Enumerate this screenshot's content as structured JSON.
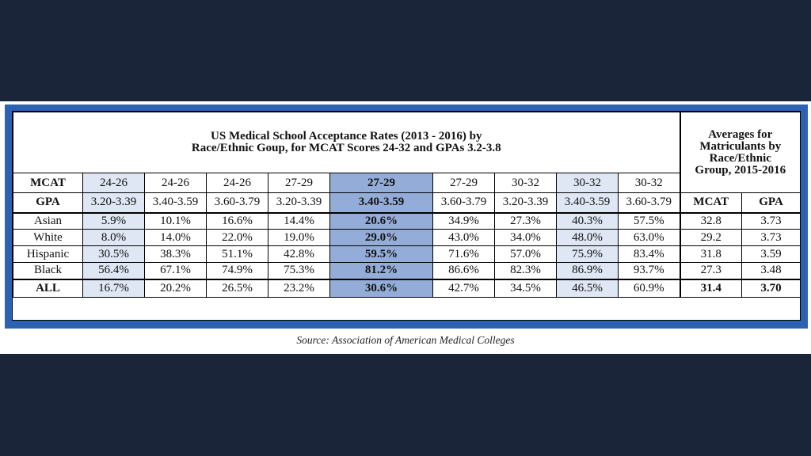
{
  "title": {
    "line1": "US Medical School Acceptance Rates (2013 - 2016) by",
    "line2": "Race/Ethnic Goup, for MCAT Scores 24-32 and GPAs 3.2-3.8"
  },
  "averages_header": {
    "line1": "Averages for",
    "line2": "Matriculants by",
    "line3": "Race/Ethnic",
    "line4": "Group, 2015-2016"
  },
  "header_rows": {
    "mcat_label": "MCAT",
    "gpa_label": "GPA",
    "mcat": [
      "24-26",
      "24-26",
      "24-26",
      "27-29",
      "27-29",
      "27-29",
      "30-32",
      "30-32",
      "30-32"
    ],
    "gpa": [
      "3.20-3.39",
      "3.40-3.59",
      "3.60-3.79",
      "3.20-3.39",
      "3.40-3.59",
      "3.60-3.79",
      "3.20-3.39",
      "3.40-3.59",
      "3.60-3.79"
    ],
    "avg_mcat_label": "MCAT",
    "avg_gpa_label": "GPA"
  },
  "rows": [
    {
      "label": "Asian",
      "values": [
        "5.9%",
        "10.1%",
        "16.6%",
        "14.4%",
        "20.6%",
        "34.9%",
        "27.3%",
        "40.3%",
        "57.5%"
      ],
      "avg_mcat": "32.8",
      "avg_gpa": "3.73"
    },
    {
      "label": "White",
      "values": [
        "8.0%",
        "14.0%",
        "22.0%",
        "19.0%",
        "29.0%",
        "43.0%",
        "34.0%",
        "48.0%",
        "63.0%"
      ],
      "avg_mcat": "29.2",
      "avg_gpa": "3.73"
    },
    {
      "label": "Hispanic",
      "values": [
        "30.5%",
        "38.3%",
        "51.1%",
        "42.8%",
        "59.5%",
        "71.6%",
        "57.0%",
        "75.9%",
        "83.4%"
      ],
      "avg_mcat": "31.8",
      "avg_gpa": "3.59"
    },
    {
      "label": "Black",
      "values": [
        "56.4%",
        "67.1%",
        "74.9%",
        "75.3%",
        "81.2%",
        "86.6%",
        "82.3%",
        "86.9%",
        "93.7%"
      ],
      "avg_mcat": "27.3",
      "avg_gpa": "3.48"
    },
    {
      "label": "ALL",
      "values": [
        "16.7%",
        "20.2%",
        "26.5%",
        "23.2%",
        "30.6%",
        "42.7%",
        "34.5%",
        "46.5%",
        "60.9%"
      ],
      "avg_mcat": "31.4",
      "avg_gpa": "3.70"
    }
  ],
  "source": "Source: Association of American Medical Colleges",
  "colors": {
    "background": "#1b2539",
    "frame": "#2d62b3",
    "highlight": "#94add8",
    "shade": "#dfe7f4"
  }
}
